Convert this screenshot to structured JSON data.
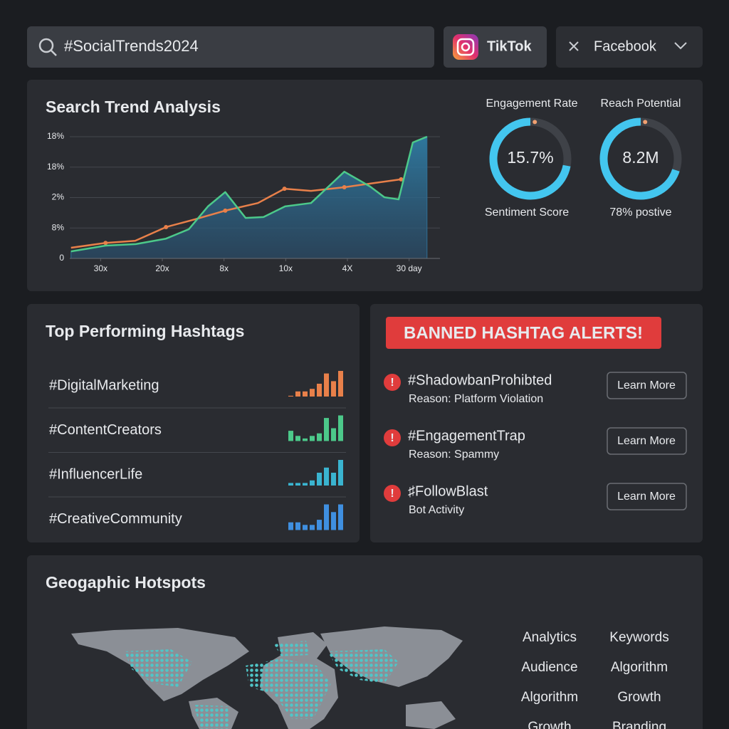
{
  "search": {
    "query": "#SocialTrends2024"
  },
  "tabs": [
    "TikTok",
    "Facebook"
  ],
  "trend_panel": {
    "title": "Search Trend Analysis"
  },
  "chart_data": {
    "type": "line",
    "xlim": [
      0,
      6
    ],
    "xticks": [
      {
        "value": 0.5,
        "label": "30x"
      },
      {
        "value": 1.5,
        "label": "20x"
      },
      {
        "value": 2.5,
        "label": "8x"
      },
      {
        "value": 3.5,
        "label": "10x"
      },
      {
        "value": 4.5,
        "label": "4X"
      },
      {
        "value": 5.5,
        "label": "30 day"
      }
    ],
    "ylim": [
      0,
      4
    ],
    "yticks": [
      0,
      {
        "value": 1,
        "label": "8%"
      },
      {
        "value": 2,
        "label": "2%"
      },
      {
        "value": 3,
        "label": "18%"
      },
      {
        "value": 4,
        "label": "18%"
      }
    ],
    "grid": true,
    "series": [
      {
        "color": "#e8804a",
        "x": [
          0.02,
          0.58,
          1.06,
          1.56,
          2.04,
          2.52,
          3.05,
          3.48,
          3.91,
          4.45,
          4.87,
          5.37
        ],
        "values": [
          0.35,
          0.51,
          0.58,
          1.03,
          1.29,
          1.57,
          1.82,
          2.29,
          2.22,
          2.34,
          2.46,
          2.6
        ]
      },
      {
        "color": "#4cc98a",
        "area_color": "#2f6f96",
        "x": [
          0.02,
          0.58,
          1.07,
          1.56,
          1.93,
          2.24,
          2.52,
          2.85,
          3.14,
          3.49,
          3.91,
          4.45,
          4.87,
          5.1,
          5.33,
          5.56,
          5.79
        ],
        "values": [
          0.23,
          0.42,
          0.47,
          0.65,
          0.96,
          1.71,
          2.18,
          1.33,
          1.36,
          1.71,
          1.82,
          2.85,
          2.36,
          2.01,
          1.94,
          3.81,
          4.0
        ]
      }
    ]
  },
  "gauges": [
    {
      "label": "Engagement Rate",
      "value": "15.7%",
      "progress": 72,
      "caption": "Sentiment Score"
    },
    {
      "label": "Reach Potential",
      "value": "8.2M",
      "progress": 70,
      "caption": "78% postive"
    }
  ],
  "hashtags": {
    "title": "Top Performing Hashtags",
    "items": [
      {
        "tag": "#DigitalMarketing",
        "color": "#e8804a",
        "bars": [
          0.3,
          2,
          2,
          3,
          5,
          9,
          6,
          10
        ]
      },
      {
        "tag": "#ContentCreators",
        "color": "#4cc98a",
        "bars": [
          4,
          2,
          1,
          2,
          3,
          9,
          5,
          10
        ]
      },
      {
        "tag": "#InfluencerLife",
        "color": "#3ab4d0",
        "bars": [
          1,
          1,
          1,
          2,
          5,
          7,
          5,
          10
        ]
      },
      {
        "tag": "#CreativeCommunity",
        "color": "#3f8fe0",
        "bars": [
          3,
          3,
          2,
          2,
          4,
          10,
          7,
          10
        ]
      }
    ]
  },
  "alerts": {
    "title": "BANNED HASHTAG ALERTS!",
    "items": [
      {
        "tag": "#ShadowbanProhibted",
        "reason": "Reason: Platform Violation",
        "action": "Learn More"
      },
      {
        "tag": "#EngagementTrap",
        "reason": "Reason: Spammy",
        "action": "Learn More"
      },
      {
        "tag": "♯FollowBlast",
        "reason": "Bot Activity",
        "action": "Learn More"
      }
    ]
  },
  "geo": {
    "title": "Geogaphic Hotspots",
    "keywords": [
      "Analytics",
      "Keywords",
      "Audience",
      "Algorithm",
      "Algorithm",
      "Growth",
      "Growth",
      "Branding"
    ]
  }
}
